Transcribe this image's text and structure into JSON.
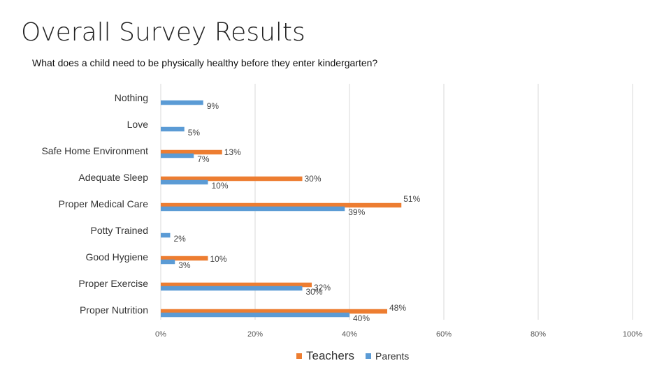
{
  "title": "Overall Survey Results",
  "subtitle": "What does a child need to be physically healthy before they enter kindergarten?",
  "chart_data": {
    "type": "bar",
    "orientation": "horizontal",
    "categories": [
      "Nothing",
      "Love",
      "Safe Home Environment",
      "Adequate Sleep",
      "Proper Medical Care",
      "Potty Trained",
      "Good Hygiene",
      "Proper Exercise",
      "Proper Nutrition"
    ],
    "series": [
      {
        "name": "Teachers",
        "color": "#ED7D31",
        "values": [
          null,
          null,
          13,
          30,
          51,
          null,
          10,
          32,
          48
        ]
      },
      {
        "name": "Parents",
        "color": "#5B9BD5",
        "values": [
          9,
          5,
          7,
          10,
          39,
          2,
          3,
          30,
          40
        ]
      }
    ],
    "xlim": [
      0,
      100
    ],
    "xticks": [
      "0%",
      "20%",
      "40%",
      "60%",
      "80%",
      "100%"
    ],
    "grid": true,
    "legend_position": "bottom",
    "value_suffix": "%"
  }
}
